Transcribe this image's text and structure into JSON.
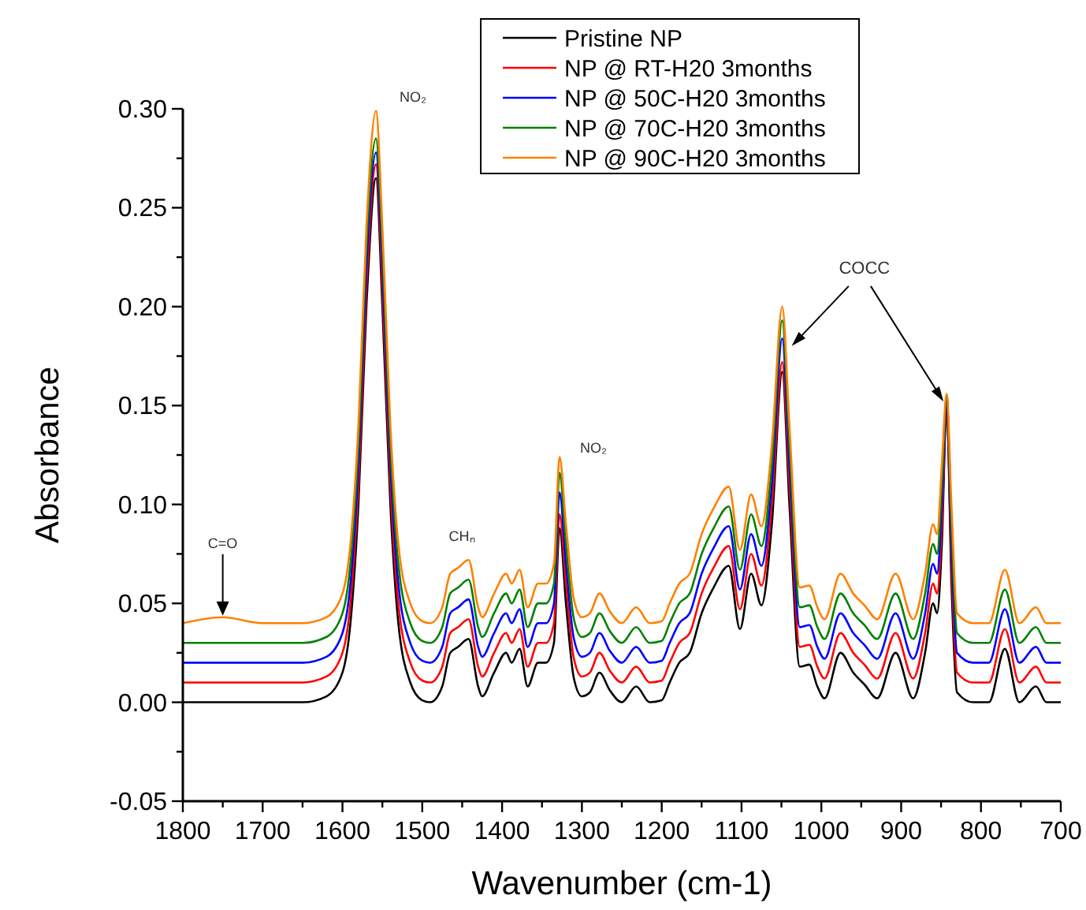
{
  "chart_data": {
    "type": "line",
    "xlabel": "Wavenumber (cm-1)",
    "ylabel": "Absorbance",
    "xlim": [
      1800,
      700
    ],
    "xticks": [
      1800,
      {
        "value": 1750,
        "label": null
      },
      1700,
      {
        "value": 1650,
        "label": null
      },
      1600,
      {
        "value": 1550,
        "label": null
      },
      1500,
      {
        "value": 1450,
        "label": null
      },
      1400,
      {
        "value": 1350,
        "label": null
      },
      1300,
      {
        "value": 1250,
        "label": null
      },
      1200,
      {
        "value": 1150,
        "label": null
      },
      1100,
      {
        "value": 1050,
        "label": null
      },
      1000,
      {
        "value": 950,
        "label": null
      },
      900,
      {
        "value": 850,
        "label": null
      },
      800,
      {
        "value": 750,
        "label": null
      },
      700
    ],
    "ylim": [
      -0.05,
      0.3
    ],
    "yticks": [
      {
        "value": -0.05,
        "label": "-0.05"
      },
      {
        "value": -0.025,
        "label": null
      },
      {
        "value": 0,
        "label": "0.00"
      },
      {
        "value": 0.025,
        "label": null
      },
      {
        "value": 0.05,
        "label": "0.05"
      },
      {
        "value": 0.075,
        "label": null
      },
      {
        "value": 0.1,
        "label": "0.10"
      },
      {
        "value": 0.125,
        "label": null
      },
      {
        "value": 0.15,
        "label": "0.15"
      },
      {
        "value": 0.175,
        "label": null
      },
      {
        "value": 0.2,
        "label": "0.20"
      },
      {
        "value": 0.225,
        "label": null
      },
      {
        "value": 0.25,
        "label": "0.25"
      },
      {
        "value": 0.275,
        "label": null
      },
      {
        "value": 0.3,
        "label": "0.30"
      }
    ],
    "grid": false,
    "legend": "top",
    "line_style": "solid",
    "x": [
      1800,
      1750,
      1700,
      1650,
      1620,
      1600,
      1590,
      1580,
      1570,
      1558,
      1550,
      1540,
      1530,
      1515,
      1500,
      1490,
      1475,
      1465,
      1455,
      1442,
      1430,
      1425,
      1410,
      1395,
      1388,
      1378,
      1368,
      1355,
      1345,
      1335,
      1328,
      1320,
      1310,
      1300,
      1290,
      1278,
      1265,
      1250,
      1232,
      1215,
      1200,
      1190,
      1178,
      1165,
      1150,
      1135,
      1116,
      1102,
      1088,
      1075,
      1062,
      1049,
      1040,
      1027,
      1015,
      1005,
      996,
      976,
      960,
      946,
      930,
      907,
      885,
      870,
      860,
      855,
      849,
      843,
      837,
      830,
      810,
      790,
      770,
      752,
      731,
      718,
      700
    ],
    "series": [
      {
        "name": "Pristine NP",
        "color": "#000000",
        "values": [
          0,
          0,
          0,
          0,
          0.003,
          0.015,
          0.04,
          0.1,
          0.2,
          0.265,
          0.2,
          0.1,
          0.04,
          0.01,
          0.001,
          0,
          0.008,
          0.025,
          0.028,
          0.032,
          0.008,
          0.003,
          0.015,
          0.025,
          0.02,
          0.027,
          0.008,
          0.02,
          0.02,
          0.03,
          0.088,
          0.05,
          0.012,
          0.003,
          0.005,
          0.015,
          0.006,
          0,
          0.008,
          0,
          0.001,
          0.01,
          0.02,
          0.025,
          0.045,
          0.058,
          0.069,
          0.037,
          0.065,
          0.049,
          0.09,
          0.167,
          0.1,
          0.018,
          0.019,
          0.008,
          0.002,
          0.025,
          0.015,
          0.009,
          0.002,
          0.025,
          0.002,
          0.025,
          0.05,
          0.045,
          0.08,
          0.15,
          0.06,
          0.005,
          0,
          0,
          0.027,
          0,
          0.008,
          0,
          0
        ]
      },
      {
        "name": "NP @ RT-H20 3months",
        "color": "#ff0000",
        "values": [
          0.01,
          0.01,
          0.01,
          0.01,
          0.013,
          0.025,
          0.05,
          0.11,
          0.21,
          0.272,
          0.21,
          0.11,
          0.05,
          0.02,
          0.011,
          0.01,
          0.018,
          0.035,
          0.038,
          0.042,
          0.018,
          0.013,
          0.025,
          0.035,
          0.03,
          0.037,
          0.018,
          0.03,
          0.03,
          0.04,
          0.095,
          0.06,
          0.022,
          0.013,
          0.015,
          0.025,
          0.016,
          0.01,
          0.018,
          0.01,
          0.011,
          0.02,
          0.03,
          0.035,
          0.055,
          0.068,
          0.079,
          0.047,
          0.075,
          0.059,
          0.1,
          0.172,
          0.11,
          0.028,
          0.029,
          0.018,
          0.012,
          0.035,
          0.025,
          0.019,
          0.012,
          0.035,
          0.012,
          0.035,
          0.06,
          0.055,
          0.09,
          0.152,
          0.07,
          0.015,
          0.01,
          0.01,
          0.037,
          0.01,
          0.018,
          0.01,
          0.01
        ]
      },
      {
        "name": "NP @ 50C-H20 3months",
        "color": "#0000ff",
        "values": [
          0.02,
          0.02,
          0.02,
          0.02,
          0.023,
          0.035,
          0.06,
          0.12,
          0.22,
          0.278,
          0.22,
          0.12,
          0.06,
          0.03,
          0.021,
          0.02,
          0.028,
          0.045,
          0.048,
          0.052,
          0.028,
          0.023,
          0.035,
          0.045,
          0.04,
          0.047,
          0.028,
          0.04,
          0.04,
          0.05,
          0.106,
          0.07,
          0.032,
          0.023,
          0.025,
          0.035,
          0.026,
          0.02,
          0.028,
          0.02,
          0.021,
          0.03,
          0.04,
          0.045,
          0.065,
          0.078,
          0.089,
          0.057,
          0.085,
          0.069,
          0.11,
          0.184,
          0.12,
          0.038,
          0.039,
          0.028,
          0.022,
          0.045,
          0.035,
          0.029,
          0.022,
          0.045,
          0.022,
          0.045,
          0.07,
          0.065,
          0.1,
          0.154,
          0.08,
          0.025,
          0.02,
          0.02,
          0.047,
          0.02,
          0.028,
          0.02,
          0.02
        ]
      },
      {
        "name": "NP @ 70C-H20 3months",
        "color": "#008000",
        "values": [
          0.03,
          0.03,
          0.03,
          0.03,
          0.033,
          0.045,
          0.07,
          0.13,
          0.23,
          0.285,
          0.23,
          0.13,
          0.07,
          0.04,
          0.031,
          0.03,
          0.038,
          0.055,
          0.058,
          0.062,
          0.038,
          0.033,
          0.045,
          0.055,
          0.05,
          0.057,
          0.038,
          0.05,
          0.05,
          0.06,
          0.116,
          0.08,
          0.042,
          0.033,
          0.035,
          0.045,
          0.036,
          0.03,
          0.038,
          0.03,
          0.031,
          0.04,
          0.05,
          0.055,
          0.075,
          0.088,
          0.099,
          0.067,
          0.095,
          0.079,
          0.12,
          0.193,
          0.13,
          0.048,
          0.049,
          0.038,
          0.032,
          0.055,
          0.045,
          0.039,
          0.032,
          0.055,
          0.032,
          0.055,
          0.08,
          0.075,
          0.11,
          0.155,
          0.09,
          0.035,
          0.03,
          0.03,
          0.057,
          0.03,
          0.038,
          0.03,
          0.03
        ]
      },
      {
        "name": "NP @ 90C-H20 3months",
        "color": "#ff8000",
        "values": [
          0.04,
          0.043,
          0.04,
          0.04,
          0.043,
          0.055,
          0.08,
          0.14,
          0.24,
          0.299,
          0.24,
          0.14,
          0.08,
          0.05,
          0.041,
          0.04,
          0.048,
          0.065,
          0.068,
          0.072,
          0.048,
          0.043,
          0.055,
          0.065,
          0.06,
          0.067,
          0.048,
          0.06,
          0.06,
          0.07,
          0.124,
          0.09,
          0.052,
          0.043,
          0.045,
          0.055,
          0.046,
          0.04,
          0.048,
          0.04,
          0.041,
          0.05,
          0.06,
          0.065,
          0.085,
          0.098,
          0.109,
          0.077,
          0.105,
          0.089,
          0.13,
          0.2,
          0.14,
          0.058,
          0.059,
          0.048,
          0.042,
          0.065,
          0.055,
          0.049,
          0.042,
          0.065,
          0.042,
          0.065,
          0.09,
          0.085,
          0.12,
          0.156,
          0.1,
          0.045,
          0.04,
          0.04,
          0.067,
          0.04,
          0.048,
          0.04,
          0.04
        ]
      }
    ],
    "annotations": [
      {
        "text": "C=O",
        "x": 1750,
        "y": 0.043
      },
      {
        "text": "NO₂",
        "x": 1558,
        "y": 0.299
      },
      {
        "text": "CHₙ",
        "x": 1442,
        "y": 0.072
      },
      {
        "text": "NO₂",
        "x": 1328,
        "y": 0.124
      },
      "COCC"
    ]
  }
}
